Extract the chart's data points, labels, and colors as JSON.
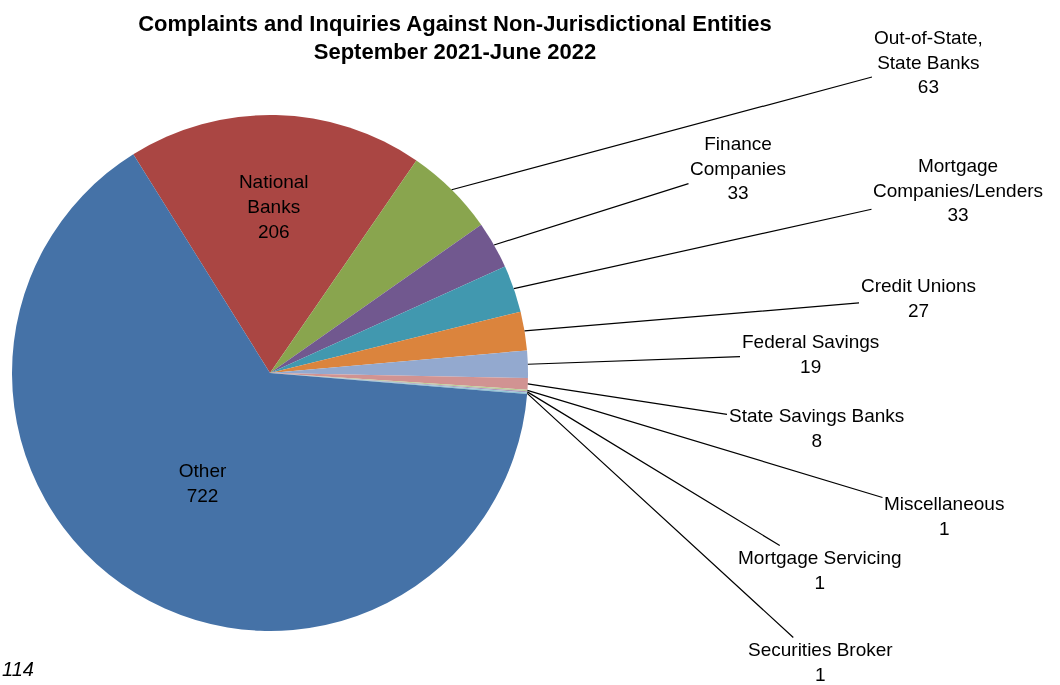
{
  "chart_data": {
    "type": "pie",
    "title": "Complaints and Inquiries Against Non-Jurisdictional Entities\nSeptember 2021-June 2022",
    "categories": [
      "National\nBanks",
      "Out-of-State,\nState Banks",
      "Finance\nCompanies",
      "Mortgage\nCompanies/Lenders",
      "Credit Unions",
      "Federal Savings",
      "State Savings Banks",
      "Miscellaneous",
      "Mortgage Servicing",
      "Securities Broker",
      "Other"
    ],
    "values": [
      206,
      63,
      33,
      33,
      27,
      19,
      8,
      1,
      1,
      1,
      722
    ],
    "colors": [
      "#aa4643",
      "#89a54e",
      "#71588f",
      "#4198af",
      "#db843d",
      "#93a9cf",
      "#d19392",
      "#b9cd96",
      "#a99bbd",
      "#92c5d5",
      "#4572a7"
    ],
    "data_labels": true,
    "legend": false,
    "annotations": [
      "114"
    ]
  }
}
